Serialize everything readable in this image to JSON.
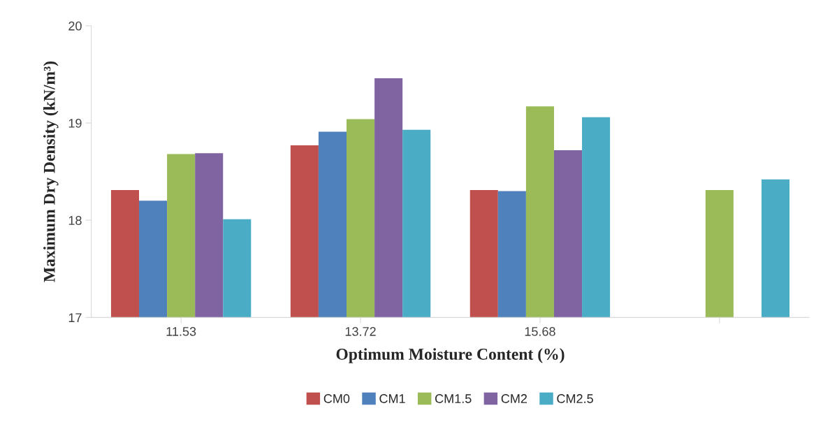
{
  "chart_data": {
    "type": "bar",
    "xlabel": "Optimum Moisture Content (%)",
    "ylabel": "Maximum Dry Density (kN/m³)",
    "categories": [
      "11.53",
      "13.72",
      "15.68",
      null
    ],
    "series": [
      {
        "name": "CM0",
        "color": "#c0504d",
        "values": [
          18.31,
          18.77,
          18.31,
          null
        ]
      },
      {
        "name": "CM1",
        "color": "#4f81bd",
        "values": [
          18.2,
          18.91,
          18.3,
          null
        ]
      },
      {
        "name": "CM1.5",
        "color": "#9bbb59",
        "values": [
          18.68,
          19.04,
          19.17,
          18.31
        ]
      },
      {
        "name": "CM2",
        "color": "#8064a2",
        "values": [
          18.69,
          19.46,
          18.72,
          null
        ]
      },
      {
        "name": "CM2.5",
        "color": "#4bacc6",
        "values": [
          18.01,
          18.93,
          19.06,
          18.42
        ]
      }
    ],
    "ylim": [
      17,
      20
    ],
    "yticks": [
      17,
      18,
      19,
      20
    ],
    "grid": false,
    "legend": "bottom"
  }
}
